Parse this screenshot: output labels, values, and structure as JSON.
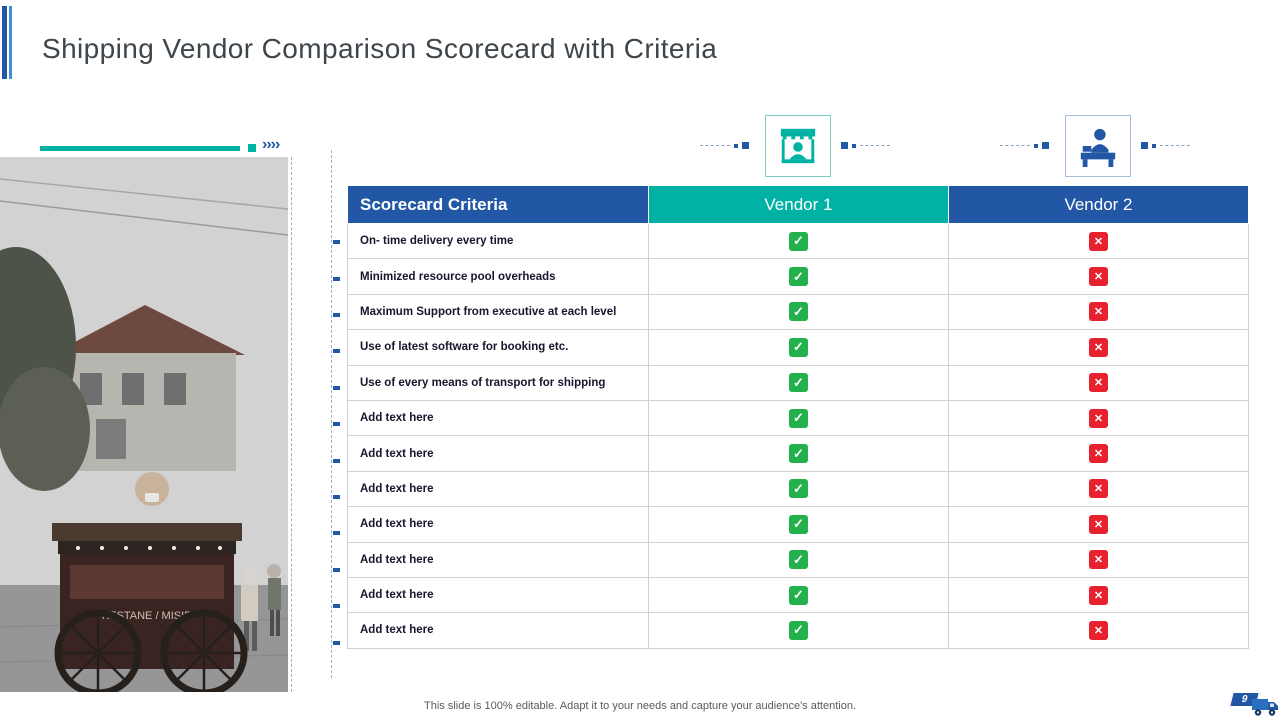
{
  "slide": {
    "title": "Shipping Vendor Comparison Scorecard with Criteria",
    "footer": "This slide is 100% editable. Adapt it to your needs and capture your audience's attention.",
    "page_number": "9"
  },
  "decor": {
    "chevrons": "››››"
  },
  "icons": {
    "vendor1": "kiosk-storefront-icon",
    "vendor2": "reception-desk-person-icon",
    "marks": {
      "yes": "check-icon",
      "no": "cross-icon"
    },
    "corner": "delivery-truck-icon",
    "photo": "street-food-cart-photo"
  },
  "colors": {
    "header_blue": "#2257a5",
    "teal": "#00b2a3",
    "check_green": "#23b14d",
    "cross_red": "#e8212e",
    "title_text": "#3e464c"
  },
  "table": {
    "headers": [
      {
        "label": "Scorecard Criteria"
      },
      {
        "label": "Vendor 1"
      },
      {
        "label": "Vendor 2"
      }
    ],
    "rows": [
      {
        "criteria": "On- time delivery every time",
        "vendor1": "check",
        "vendor2": "cross"
      },
      {
        "criteria": "Minimized resource pool overheads",
        "vendor1": "check",
        "vendor2": "cross"
      },
      {
        "criteria": "Maximum Support from executive at each level",
        "vendor1": "check",
        "vendor2": "cross"
      },
      {
        "criteria": "Use of latest software for booking etc.",
        "vendor1": "check",
        "vendor2": "cross"
      },
      {
        "criteria": "Use of every means of transport for shipping",
        "vendor1": "check",
        "vendor2": "cross"
      },
      {
        "criteria": "Add text here",
        "vendor1": "check",
        "vendor2": "cross"
      },
      {
        "criteria": "Add text here",
        "vendor1": "check",
        "vendor2": "cross"
      },
      {
        "criteria": "Add text here",
        "vendor1": "check",
        "vendor2": "cross"
      },
      {
        "criteria": "Add text here",
        "vendor1": "check",
        "vendor2": "cross"
      },
      {
        "criteria": "Add text here",
        "vendor1": "check",
        "vendor2": "cross"
      },
      {
        "criteria": "Add text here",
        "vendor1": "check",
        "vendor2": "cross"
      },
      {
        "criteria": "Add text here",
        "vendor1": "check",
        "vendor2": "cross"
      }
    ]
  }
}
